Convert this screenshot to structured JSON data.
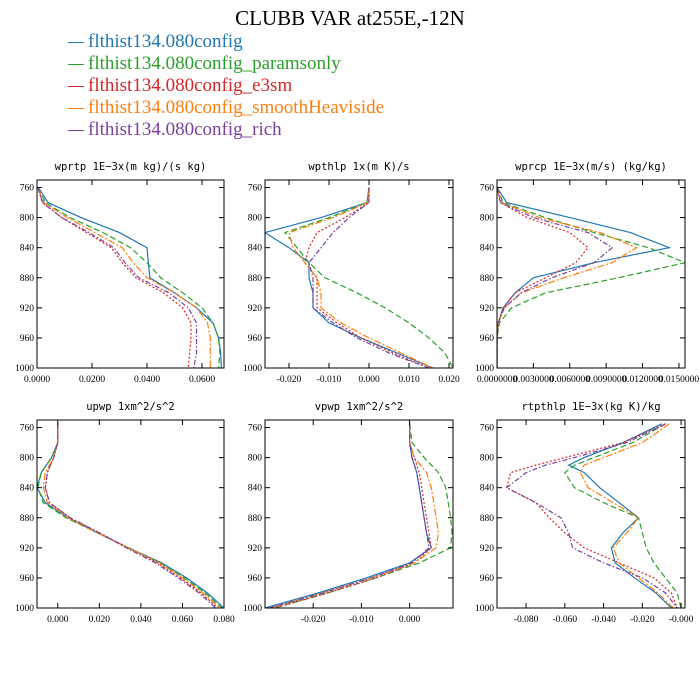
{
  "title": "CLUBB VAR at255E,-12N",
  "legend": [
    {
      "label": "flthist134.080config",
      "color": "#1f77b4",
      "style": "solid"
    },
    {
      "label": "flthist134.080config_paramsonly",
      "color": "#2ca02c",
      "style": "dashed"
    },
    {
      "label": "flthist134.080config_e3sm",
      "color": "#d62728",
      "style": "dotted"
    },
    {
      "label": "flthist134.080config_smoothHeaviside",
      "color": "#ff7f0e",
      "style": "dashdot"
    },
    {
      "label": "flthist134.080config_rich",
      "color": "#7b3fa0",
      "style": "dashdot"
    }
  ],
  "chart_data": [
    {
      "type": "line",
      "title": "wprtp  1E−3x(m kg)/(s kg)",
      "xlim": [
        0,
        0.068
      ],
      "ylim": [
        1000,
        750
      ],
      "ylabel_inverted": true,
      "xticks": [
        0,
        0.02,
        0.04,
        0.06
      ],
      "xticklabels": [
        "0.0000",
        "0.0200",
        "0.0400",
        "0.0600"
      ],
      "yticks": [
        760,
        800,
        840,
        880,
        920,
        960,
        1000
      ],
      "y": [
        760,
        780,
        800,
        820,
        840,
        860,
        880,
        900,
        920,
        940,
        960,
        980,
        1000
      ],
      "series": [
        {
          "values": [
            0.0005,
            0.004,
            0.016,
            0.03,
            0.04,
            0.0405,
            0.041,
            0.05,
            0.058,
            0.064,
            0.066,
            0.0668,
            0.067
          ]
        },
        {
          "values": [
            0.0005,
            0.003,
            0.012,
            0.024,
            0.034,
            0.04,
            0.045,
            0.053,
            0.06,
            0.064,
            0.066,
            0.0665,
            0.066
          ]
        },
        {
          "values": [
            0.0003,
            0.002,
            0.009,
            0.018,
            0.027,
            0.031,
            0.036,
            0.046,
            0.053,
            0.056,
            0.056,
            0.0555,
            0.055
          ]
        },
        {
          "values": [
            0.0004,
            0.0025,
            0.011,
            0.021,
            0.031,
            0.035,
            0.04,
            0.05,
            0.058,
            0.062,
            0.063,
            0.063,
            0.063
          ]
        },
        {
          "values": [
            0.0003,
            0.002,
            0.009,
            0.019,
            0.028,
            0.032,
            0.037,
            0.048,
            0.055,
            0.058,
            0.058,
            0.058,
            0.057
          ]
        }
      ]
    },
    {
      "type": "line",
      "title": "wpthlp  1x(m K)/s",
      "xlim": [
        -0.026,
        0.021
      ],
      "ylim": [
        1000,
        750
      ],
      "xticks": [
        -0.02,
        -0.01,
        0,
        0.01,
        0.02
      ],
      "xticklabels": [
        "-0.020",
        "-0.010",
        "0.000",
        "0.010",
        "0.020"
      ],
      "yticks": [
        760,
        800,
        840,
        880,
        920,
        960,
        1000
      ],
      "y": [
        760,
        780,
        800,
        820,
        840,
        860,
        880,
        900,
        920,
        940,
        960,
        980,
        1000
      ],
      "series": [
        {
          "values": [
            0.0,
            -0.0005,
            -0.012,
            -0.026,
            -0.02,
            -0.015,
            -0.015,
            -0.014,
            -0.014,
            -0.01,
            -0.002,
            0.007,
            0.016
          ]
        },
        {
          "values": [
            0.0,
            -0.0005,
            -0.01,
            -0.021,
            -0.018,
            -0.015,
            -0.011,
            -0.003,
            0.004,
            0.01,
            0.015,
            0.019,
            0.021
          ]
        },
        {
          "values": [
            0.0,
            0.0,
            -0.006,
            -0.013,
            -0.015,
            -0.016,
            -0.013,
            -0.013,
            -0.013,
            -0.008,
            -0.002,
            0.006,
            0.015
          ]
        },
        {
          "values": [
            0.0,
            -0.0003,
            -0.009,
            -0.02,
            -0.019,
            -0.016,
            -0.013,
            -0.012,
            -0.012,
            -0.007,
            0.0,
            0.008,
            0.016
          ]
        },
        {
          "values": [
            0.0,
            0.0,
            -0.005,
            -0.009,
            -0.012,
            -0.015,
            -0.014,
            -0.014,
            -0.014,
            -0.009,
            -0.003,
            0.005,
            0.015
          ]
        }
      ]
    },
    {
      "type": "line",
      "title": "wprcp  1E−3x(m/s) (kg/kg)",
      "xlim": [
        0,
        0.0155
      ],
      "ylim": [
        1000,
        750
      ],
      "xticks": [
        0,
        0.003,
        0.006,
        0.009,
        0.012,
        0.015
      ],
      "xticklabels": [
        "0.0000000",
        "0.0030000",
        "0.0060000",
        "0.0090000",
        "0.0120000",
        "0.0150000"
      ],
      "yticks": [
        760,
        800,
        840,
        880,
        920,
        960,
        1000
      ],
      "y": [
        760,
        780,
        800,
        820,
        840,
        860,
        880,
        900,
        920,
        940,
        960,
        980,
        1000
      ],
      "series": [
        {
          "values": [
            0.0,
            0.0008,
            0.006,
            0.011,
            0.0142,
            0.008,
            0.003,
            0.0015,
            0.0005,
            0.0001,
            0.0,
            0.0,
            0.0
          ]
        },
        {
          "values": [
            0.0,
            0.0005,
            0.004,
            0.008,
            0.0125,
            0.0155,
            0.01,
            0.004,
            0.0012,
            0.0002,
            0.0,
            0.0,
            0.0
          ]
        },
        {
          "values": [
            0.0,
            0.0003,
            0.0025,
            0.006,
            0.0075,
            0.0065,
            0.004,
            0.0015,
            0.0005,
            0.0001,
            0.0,
            0.0,
            0.0
          ]
        },
        {
          "values": [
            0.0,
            0.0004,
            0.0035,
            0.0085,
            0.0115,
            0.0095,
            0.0055,
            0.002,
            0.0006,
            0.0001,
            0.0,
            0.0,
            0.0
          ]
        },
        {
          "values": [
            0.0,
            0.0003,
            0.003,
            0.0075,
            0.0095,
            0.008,
            0.0045,
            0.002,
            0.0006,
            0.0001,
            0.0,
            0.0,
            0.0
          ]
        }
      ]
    },
    {
      "type": "line",
      "title": "upwp  1xm^2/s^2",
      "xlim": [
        -0.01,
        0.08
      ],
      "ylim": [
        1000,
        750
      ],
      "xticks": [
        0,
        0.02,
        0.04,
        0.06,
        0.08
      ],
      "xticklabels": [
        "0.000",
        "0.020",
        "0.040",
        "0.060",
        "0.080"
      ],
      "yticks": [
        760,
        800,
        840,
        880,
        920,
        960,
        1000
      ],
      "y": [
        755,
        780,
        800,
        820,
        840,
        860,
        880,
        900,
        920,
        940,
        960,
        980,
        1000
      ],
      "series": [
        {
          "values": [
            0.0,
            0.0,
            -0.003,
            -0.008,
            -0.01,
            -0.006,
            0.005,
            0.019,
            0.034,
            0.05,
            0.062,
            0.072,
            0.08
          ]
        },
        {
          "values": [
            0.0,
            0.0,
            -0.003,
            -0.008,
            -0.0095,
            -0.007,
            0.004,
            0.019,
            0.034,
            0.049,
            0.061,
            0.071,
            0.079
          ]
        },
        {
          "values": [
            0.0,
            0.0,
            -0.002,
            -0.005,
            -0.006,
            -0.004,
            0.006,
            0.02,
            0.034,
            0.048,
            0.059,
            0.069,
            0.077
          ]
        },
        {
          "values": [
            0.0,
            0.0,
            -0.002,
            -0.006,
            -0.007,
            -0.005,
            0.005,
            0.019,
            0.034,
            0.049,
            0.06,
            0.07,
            0.078
          ]
        },
        {
          "values": [
            0.0,
            0.0,
            -0.002,
            -0.005,
            -0.006,
            -0.004,
            0.006,
            0.02,
            0.033,
            0.047,
            0.058,
            0.068,
            0.076
          ]
        }
      ]
    },
    {
      "type": "line",
      "title": "vpwp  1xm^2/s^2",
      "xlim": [
        -0.03,
        0.009
      ],
      "ylim": [
        1000,
        750
      ],
      "xticks": [
        -0.02,
        -0.01,
        0
      ],
      "xticklabels": [
        "-0.020",
        "-0.010",
        "0.000"
      ],
      "yticks": [
        760,
        800,
        840,
        880,
        920,
        960,
        1000
      ],
      "y": [
        755,
        780,
        800,
        820,
        840,
        860,
        880,
        900,
        920,
        940,
        960,
        980,
        1000
      ],
      "series": [
        {
          "values": [
            0.0,
            0.0,
            0.0005,
            0.0015,
            0.002,
            0.0025,
            0.003,
            0.0035,
            0.0045,
            0.0,
            -0.009,
            -0.019,
            -0.03
          ]
        },
        {
          "values": [
            0.0,
            0.0005,
            0.003,
            0.006,
            0.0075,
            0.008,
            0.0085,
            0.0088,
            0.0085,
            0.002,
            -0.007,
            -0.017,
            -0.028
          ]
        },
        {
          "values": [
            0.0,
            0.0,
            0.001,
            0.002,
            0.0025,
            0.003,
            0.0035,
            0.004,
            0.0045,
            0.001,
            -0.007,
            -0.017,
            -0.028
          ]
        },
        {
          "values": [
            0.0,
            0.0,
            0.001,
            0.0035,
            0.0045,
            0.005,
            0.0055,
            0.006,
            0.0055,
            0.001,
            -0.008,
            -0.018,
            -0.029
          ]
        },
        {
          "values": [
            0.0,
            0.0,
            0.0005,
            0.0015,
            0.002,
            0.0025,
            0.003,
            0.0035,
            0.004,
            0.0005,
            -0.008,
            -0.018,
            -0.029
          ]
        }
      ]
    },
    {
      "type": "line",
      "title": "rtpthlp  1E−3x(kg K)/kg",
      "xlim": [
        -0.095,
        0.002
      ],
      "ylim": [
        1000,
        750
      ],
      "xticks": [
        -0.08,
        -0.06,
        -0.04,
        -0.02,
        0
      ],
      "xticklabels": [
        "-0.080",
        "-0.060",
        "-0.040",
        "-0.020",
        "-0.000"
      ],
      "yticks": [
        760,
        800,
        840,
        880,
        920,
        960,
        1000
      ],
      "y": [
        755,
        780,
        800,
        810,
        820,
        840,
        860,
        880,
        900,
        920,
        940,
        960,
        980,
        1000
      ],
      "series": [
        {
          "values": [
            -0.01,
            -0.03,
            -0.05,
            -0.058,
            -0.05,
            -0.042,
            -0.032,
            -0.022,
            -0.03,
            -0.036,
            -0.034,
            -0.024,
            -0.013,
            -0.005
          ]
        },
        {
          "values": [
            -0.008,
            -0.025,
            -0.045,
            -0.055,
            -0.06,
            -0.055,
            -0.04,
            -0.022,
            -0.02,
            -0.018,
            -0.014,
            -0.008,
            -0.002,
            0.0
          ]
        },
        {
          "values": [
            -0.008,
            -0.03,
            -0.06,
            -0.075,
            -0.088,
            -0.09,
            -0.075,
            -0.068,
            -0.06,
            -0.05,
            -0.032,
            -0.014,
            -0.005,
            -0.002
          ]
        },
        {
          "values": [
            -0.006,
            -0.02,
            -0.04,
            -0.05,
            -0.052,
            -0.048,
            -0.035,
            -0.022,
            -0.028,
            -0.035,
            -0.032,
            -0.022,
            -0.012,
            -0.004
          ]
        },
        {
          "values": [
            -0.008,
            -0.028,
            -0.055,
            -0.07,
            -0.08,
            -0.09,
            -0.075,
            -0.062,
            -0.058,
            -0.056,
            -0.04,
            -0.02,
            -0.008,
            -0.002
          ]
        }
      ]
    }
  ]
}
